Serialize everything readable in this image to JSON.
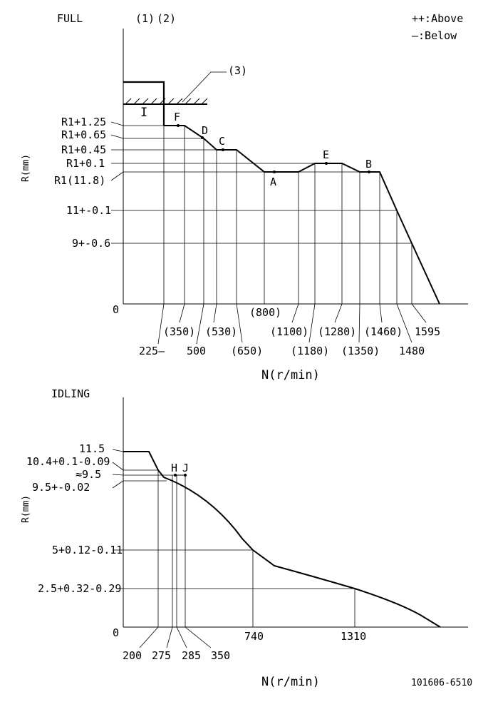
{
  "legend": {
    "above": "++:Above",
    "below": "—:Below"
  },
  "full": {
    "title": "FULL",
    "refs": [
      "(1)",
      "(2)",
      "(3)"
    ],
    "region_label": "I",
    "y_axis_label": "R(mm)",
    "x_axis_label": "N(r/min)",
    "origin": "0",
    "y_labels": [
      "R1+1.25",
      "R1+0.65",
      "R1+0.45",
      "R1+0.1",
      "R1(11.8)",
      "11+-0.1",
      "9+-0.6"
    ],
    "x_labels": [
      "225—",
      "(350)",
      "500",
      "(530)",
      "(650)",
      "(800)",
      "(1100)",
      "(1180)",
      "(1280)",
      "(1350)",
      "(1460)",
      "1480",
      "1595"
    ],
    "points": [
      "F",
      "D",
      "C",
      "A",
      "E",
      "B"
    ]
  },
  "idling": {
    "title": "IDLING",
    "y_axis_label": "R(mm)",
    "x_axis_label": "N(r/min)",
    "origin": "0",
    "y_labels": [
      "11.5",
      "10.4+0.1-0.09",
      "≈9.5",
      "9.5+-0.02",
      "5+0.12-0.11",
      "2.5+0.32-0.29"
    ],
    "x_labels": [
      "200",
      "275",
      "285",
      "350",
      "740",
      "1310"
    ],
    "points": [
      "H",
      "J"
    ]
  },
  "drawing_id": "101606-6510"
}
